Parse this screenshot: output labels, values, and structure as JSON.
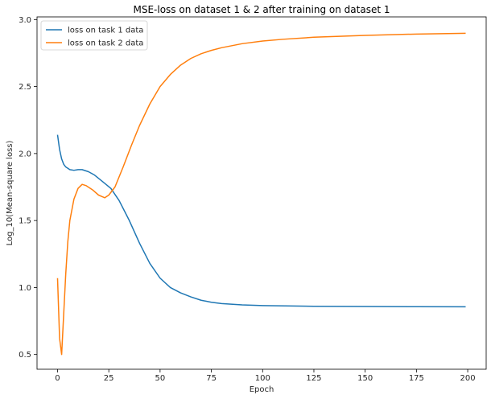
{
  "chart_data": {
    "type": "line",
    "title": "MSE-loss on dataset 1 & 2 after training on dataset 1",
    "xlabel": "Epoch",
    "ylabel": "Log_10(Mean-square loss)",
    "xlim": [
      -10,
      209
    ],
    "ylim": [
      0.39,
      3.02
    ],
    "xticks": [
      0,
      25,
      50,
      75,
      100,
      125,
      150,
      175,
      200
    ],
    "yticks": [
      0.5,
      1.0,
      1.5,
      2.0,
      2.5,
      3.0
    ],
    "xtick_labels": [
      "0",
      "25",
      "50",
      "75",
      "100",
      "125",
      "150",
      "175",
      "200"
    ],
    "ytick_labels": [
      "0.5",
      "1.0",
      "1.5",
      "2.0",
      "2.5",
      "3.0"
    ],
    "grid": false,
    "legend_position": "top-left",
    "series": [
      {
        "name": "loss on task 1 data",
        "color": "#1f77b4",
        "points": [
          [
            0,
            2.14
          ],
          [
            1,
            2.03
          ],
          [
            2,
            1.96
          ],
          [
            3,
            1.92
          ],
          [
            4,
            1.9
          ],
          [
            6,
            1.88
          ],
          [
            8,
            1.875
          ],
          [
            10,
            1.88
          ],
          [
            12,
            1.88
          ],
          [
            15,
            1.865
          ],
          [
            18,
            1.84
          ],
          [
            22,
            1.79
          ],
          [
            26,
            1.74
          ],
          [
            30,
            1.65
          ],
          [
            35,
            1.5
          ],
          [
            40,
            1.33
          ],
          [
            45,
            1.18
          ],
          [
            50,
            1.07
          ],
          [
            55,
            1.0
          ],
          [
            60,
            0.96
          ],
          [
            65,
            0.93
          ],
          [
            70,
            0.905
          ],
          [
            75,
            0.89
          ],
          [
            80,
            0.88
          ],
          [
            90,
            0.87
          ],
          [
            100,
            0.865
          ],
          [
            125,
            0.86
          ],
          [
            150,
            0.858
          ],
          [
            175,
            0.857
          ],
          [
            199,
            0.856
          ]
        ]
      },
      {
        "name": "loss on task 2 data",
        "color": "#ff7f0e",
        "points": [
          [
            0,
            1.07
          ],
          [
            1,
            0.62
          ],
          [
            2,
            0.5
          ],
          [
            3,
            0.8
          ],
          [
            4,
            1.1
          ],
          [
            5,
            1.34
          ],
          [
            6,
            1.5
          ],
          [
            8,
            1.66
          ],
          [
            10,
            1.74
          ],
          [
            12,
            1.77
          ],
          [
            14,
            1.76
          ],
          [
            17,
            1.73
          ],
          [
            20,
            1.69
          ],
          [
            23,
            1.67
          ],
          [
            25,
            1.69
          ],
          [
            28,
            1.75
          ],
          [
            32,
            1.9
          ],
          [
            36,
            2.06
          ],
          [
            40,
            2.21
          ],
          [
            45,
            2.37
          ],
          [
            50,
            2.5
          ],
          [
            55,
            2.59
          ],
          [
            60,
            2.66
          ],
          [
            65,
            2.71
          ],
          [
            70,
            2.745
          ],
          [
            75,
            2.77
          ],
          [
            80,
            2.79
          ],
          [
            90,
            2.82
          ],
          [
            100,
            2.84
          ],
          [
            110,
            2.853
          ],
          [
            125,
            2.868
          ],
          [
            150,
            2.882
          ],
          [
            175,
            2.892
          ],
          [
            199,
            2.898
          ]
        ]
      }
    ]
  }
}
